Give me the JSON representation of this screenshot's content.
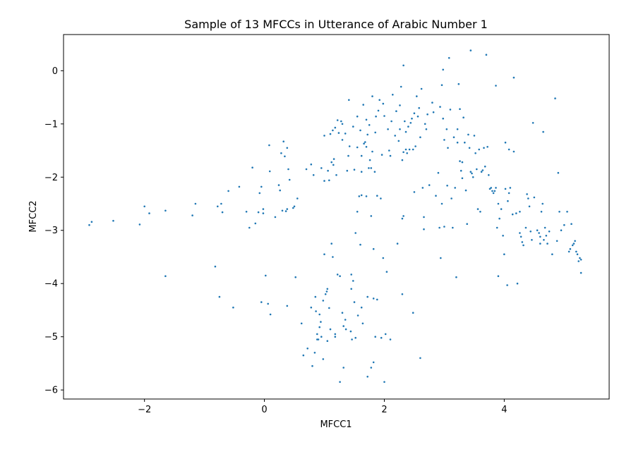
{
  "chart_data": {
    "type": "scatter",
    "title": "Sample of 13 MFCCs in Utterance of Arabic Number 1",
    "xlabel": "MFCC1",
    "ylabel": "MFCC2",
    "xlim": [
      -3.35,
      5.75
    ],
    "ylim": [
      -6.17,
      0.68
    ],
    "xticks": [
      -2,
      0,
      2,
      4
    ],
    "yticks": [
      -6,
      -5,
      -4,
      -3,
      -2,
      -1,
      0
    ],
    "grid": false,
    "marker_color": "#1f77b4",
    "points": [
      [
        -2.92,
        -2.9
      ],
      [
        -2.88,
        -2.84
      ],
      [
        -2.52,
        -2.82
      ],
      [
        -2.08,
        -2.89
      ],
      [
        -2.0,
        -2.55
      ],
      [
        -1.92,
        -2.68
      ],
      [
        -1.65,
        -2.63
      ],
      [
        -1.65,
        -3.86
      ],
      [
        -1.2,
        -2.72
      ],
      [
        -1.15,
        -2.5
      ],
      [
        -0.82,
        -3.68
      ],
      [
        -0.75,
        -4.25
      ],
      [
        -0.78,
        -2.55
      ],
      [
        -0.72,
        -2.5
      ],
      [
        -0.7,
        -2.66
      ],
      [
        -0.6,
        -2.26
      ],
      [
        -0.52,
        -4.45
      ],
      [
        -0.42,
        -2.18
      ],
      [
        -0.3,
        -2.65
      ],
      [
        -0.25,
        -2.95
      ],
      [
        -0.2,
        -1.82
      ],
      [
        -0.15,
        -2.87
      ],
      [
        -0.1,
        -2.66
      ],
      [
        -0.08,
        -2.3
      ],
      [
        -0.05,
        -2.18
      ],
      [
        -0.05,
        -4.35
      ],
      [
        -0.02,
        -2.6
      ],
      [
        -0.02,
        -2.68
      ],
      [
        0.02,
        -3.85
      ],
      [
        0.06,
        -4.38
      ],
      [
        0.08,
        -1.4
      ],
      [
        0.09,
        -1.89
      ],
      [
        0.1,
        -4.58
      ],
      [
        0.18,
        -2.75
      ],
      [
        0.24,
        -2.15
      ],
      [
        0.26,
        -2.25
      ],
      [
        0.28,
        -1.55
      ],
      [
        0.3,
        -2.63
      ],
      [
        0.32,
        -1.33
      ],
      [
        0.34,
        -1.61
      ],
      [
        0.36,
        -2.64
      ],
      [
        0.38,
        -1.45
      ],
      [
        0.38,
        -2.6
      ],
      [
        0.38,
        -4.42
      ],
      [
        0.4,
        -1.85
      ],
      [
        0.42,
        -2.05
      ],
      [
        0.48,
        -2.58
      ],
      [
        0.5,
        -2.55
      ],
      [
        0.52,
        -3.88
      ],
      [
        0.55,
        -2.4
      ],
      [
        0.62,
        -4.75
      ],
      [
        0.65,
        -5.35
      ],
      [
        0.7,
        -1.85
      ],
      [
        0.72,
        -5.22
      ],
      [
        0.78,
        -1.76
      ],
      [
        0.78,
        -4.45
      ],
      [
        0.8,
        -5.55
      ],
      [
        0.82,
        -1.96
      ],
      [
        0.84,
        -5.3
      ],
      [
        0.85,
        -4.25
      ],
      [
        0.86,
        -4.52
      ],
      [
        0.88,
        -4.95
      ],
      [
        0.88,
        -5.05
      ],
      [
        0.9,
        -5.05
      ],
      [
        0.92,
        -4.82
      ],
      [
        0.92,
        -4.58
      ],
      [
        0.94,
        -4.72
      ],
      [
        0.95,
        -5.0
      ],
      [
        0.95,
        -1.83
      ],
      [
        0.98,
        -4.32
      ],
      [
        0.98,
        -5.42
      ],
      [
        1.0,
        -2.07
      ],
      [
        1.0,
        -3.45
      ],
      [
        1.0,
        -1.22
      ],
      [
        1.02,
        -4.2
      ],
      [
        1.04,
        -4.15
      ],
      [
        1.05,
        -5.08
      ],
      [
        1.05,
        -4.1
      ],
      [
        1.06,
        -1.88
      ],
      [
        1.08,
        -4.46
      ],
      [
        1.08,
        -2.06
      ],
      [
        1.1,
        -1.19
      ],
      [
        1.1,
        -4.86
      ],
      [
        1.12,
        -3.25
      ],
      [
        1.12,
        -1.72
      ],
      [
        1.14,
        -1.12
      ],
      [
        1.14,
        -3.5
      ],
      [
        1.15,
        -1.77
      ],
      [
        1.16,
        -1.66
      ],
      [
        1.18,
        -4.95
      ],
      [
        1.18,
        -5.0
      ],
      [
        1.18,
        -1.07
      ],
      [
        1.2,
        -1.96
      ],
      [
        1.22,
        -0.93
      ],
      [
        1.22,
        -3.83
      ],
      [
        1.24,
        -1.17
      ],
      [
        1.26,
        -3.86
      ],
      [
        1.26,
        -5.85
      ],
      [
        1.28,
        -0.95
      ],
      [
        1.3,
        -1.0
      ],
      [
        1.3,
        -1.3
      ],
      [
        1.3,
        -4.55
      ],
      [
        1.32,
        -5.58
      ],
      [
        1.32,
        -4.8
      ],
      [
        1.35,
        -1.18
      ],
      [
        1.35,
        -4.68
      ],
      [
        1.36,
        -4.86
      ],
      [
        1.38,
        -1.88
      ],
      [
        1.4,
        -1.6
      ],
      [
        1.41,
        -0.55
      ],
      [
        1.42,
        -1.42
      ],
      [
        1.44,
        -4.9
      ],
      [
        1.45,
        -3.83
      ],
      [
        1.45,
        -4.1
      ],
      [
        1.46,
        -5.05
      ],
      [
        1.48,
        -1.05
      ],
      [
        1.48,
        -3.95
      ],
      [
        1.5,
        -4.35
      ],
      [
        1.5,
        -1.86
      ],
      [
        1.52,
        -5.02
      ],
      [
        1.52,
        -3.05
      ],
      [
        1.55,
        -2.65
      ],
      [
        1.55,
        -1.44
      ],
      [
        1.55,
        -0.86
      ],
      [
        1.56,
        -4.6
      ],
      [
        1.58,
        -2.36
      ],
      [
        1.6,
        -3.27
      ],
      [
        1.6,
        -1.12
      ],
      [
        1.62,
        -4.45
      ],
      [
        1.62,
        -2.34
      ],
      [
        1.62,
        -1.6
      ],
      [
        1.62,
        -1.9
      ],
      [
        1.64,
        -4.75
      ],
      [
        1.65,
        -0.64
      ],
      [
        1.66,
        -1.37
      ],
      [
        1.68,
        -1.34
      ],
      [
        1.7,
        -1.43
      ],
      [
        1.7,
        -2.36
      ],
      [
        1.7,
        -0.92
      ],
      [
        1.72,
        -5.75
      ],
      [
        1.72,
        -1.2
      ],
      [
        1.72,
        -4.25
      ],
      [
        1.74,
        -1.83
      ],
      [
        1.75,
        -1.02
      ],
      [
        1.76,
        -1.68
      ],
      [
        1.78,
        -1.83
      ],
      [
        1.78,
        -2.73
      ],
      [
        1.78,
        -5.58
      ],
      [
        1.8,
        -0.48
      ],
      [
        1.8,
        -1.52
      ],
      [
        1.82,
        -5.48
      ],
      [
        1.82,
        -3.35
      ],
      [
        1.82,
        -4.28
      ],
      [
        1.84,
        -1.9
      ],
      [
        1.85,
        -5.0
      ],
      [
        1.85,
        -1.16
      ],
      [
        1.86,
        -0.86
      ],
      [
        1.88,
        -2.35
      ],
      [
        1.88,
        -4.3
      ],
      [
        1.9,
        -0.75
      ],
      [
        1.92,
        -0.55
      ],
      [
        1.94,
        -2.4
      ],
      [
        1.95,
        -5.02
      ],
      [
        1.96,
        -1.58
      ],
      [
        1.98,
        -3.52
      ],
      [
        1.98,
        -0.62
      ],
      [
        2.0,
        -5.85
      ],
      [
        2.0,
        -0.85
      ],
      [
        2.02,
        -4.95
      ],
      [
        2.04,
        -3.78
      ],
      [
        2.06,
        -1.1
      ],
      [
        2.08,
        -1.5
      ],
      [
        2.1,
        -1.6
      ],
      [
        2.1,
        -5.05
      ],
      [
        2.12,
        -0.95
      ],
      [
        2.14,
        -0.45
      ],
      [
        2.18,
        -1.22
      ],
      [
        2.2,
        -0.76
      ],
      [
        2.22,
        -3.25
      ],
      [
        2.24,
        -1.32
      ],
      [
        2.26,
        -1.1
      ],
      [
        2.26,
        -0.65
      ],
      [
        2.28,
        -0.3
      ],
      [
        2.3,
        -4.2
      ],
      [
        2.3,
        -1.68
      ],
      [
        2.3,
        -2.78
      ],
      [
        2.32,
        -2.73
      ],
      [
        2.32,
        -1.53
      ],
      [
        2.32,
        0.1
      ],
      [
        2.34,
        -0.95
      ],
      [
        2.36,
        -1.15
      ],
      [
        2.36,
        -1.48
      ],
      [
        2.38,
        -1.55
      ],
      [
        2.4,
        -1.05
      ],
      [
        2.42,
        -1.48
      ],
      [
        2.44,
        -0.98
      ],
      [
        2.46,
        -0.9
      ],
      [
        2.48,
        -4.55
      ],
      [
        2.48,
        -1.48
      ],
      [
        2.5,
        -0.8
      ],
      [
        2.5,
        -2.28
      ],
      [
        2.52,
        -1.42
      ],
      [
        2.54,
        -0.48
      ],
      [
        2.56,
        -0.86
      ],
      [
        2.58,
        -0.7
      ],
      [
        2.6,
        -5.4
      ],
      [
        2.6,
        -1.25
      ],
      [
        2.62,
        -0.34
      ],
      [
        2.64,
        -2.2
      ],
      [
        2.66,
        -2.75
      ],
      [
        2.66,
        -2.98
      ],
      [
        2.68,
        -1.0
      ],
      [
        2.7,
        -1.1
      ],
      [
        2.72,
        -0.82
      ],
      [
        2.75,
        -2.15
      ],
      [
        2.8,
        -0.6
      ],
      [
        2.82,
        -0.78
      ],
      [
        2.86,
        -2.35
      ],
      [
        2.9,
        -1.92
      ],
      [
        2.92,
        -2.95
      ],
      [
        2.93,
        -0.68
      ],
      [
        2.94,
        -3.52
      ],
      [
        2.96,
        -2.5
      ],
      [
        2.96,
        -0.27
      ],
      [
        2.98,
        0.02
      ],
      [
        2.98,
        -0.9
      ],
      [
        3.0,
        -2.93
      ],
      [
        3.0,
        -1.3
      ],
      [
        3.04,
        -1.1
      ],
      [
        3.05,
        -2.16
      ],
      [
        3.06,
        -1.45
      ],
      [
        3.08,
        0.24
      ],
      [
        3.1,
        -0.73
      ],
      [
        3.12,
        -2.4
      ],
      [
        3.14,
        -2.95
      ],
      [
        3.16,
        -1.25
      ],
      [
        3.18,
        -2.2
      ],
      [
        3.2,
        -3.88
      ],
      [
        3.22,
        -1.35
      ],
      [
        3.22,
        -1.1
      ],
      [
        3.24,
        -0.25
      ],
      [
        3.26,
        -0.72
      ],
      [
        3.26,
        -1.7
      ],
      [
        3.28,
        -1.88
      ],
      [
        3.3,
        -2.02
      ],
      [
        3.3,
        -1.72
      ],
      [
        3.32,
        -0.88
      ],
      [
        3.34,
        -1.35
      ],
      [
        3.36,
        -2.25
      ],
      [
        3.38,
        -2.88
      ],
      [
        3.4,
        -1.2
      ],
      [
        3.42,
        -1.45
      ],
      [
        3.44,
        -1.9
      ],
      [
        3.44,
        0.38
      ],
      [
        3.46,
        -1.93
      ],
      [
        3.48,
        -2.0
      ],
      [
        3.5,
        -1.22
      ],
      [
        3.52,
        -1.55
      ],
      [
        3.54,
        -1.85
      ],
      [
        3.56,
        -2.6
      ],
      [
        3.58,
        -1.48
      ],
      [
        3.6,
        -2.65
      ],
      [
        3.62,
        -1.9
      ],
      [
        3.64,
        -1.87
      ],
      [
        3.66,
        -1.45
      ],
      [
        3.68,
        -1.8
      ],
      [
        3.7,
        0.3
      ],
      [
        3.72,
        -1.43
      ],
      [
        3.74,
        -1.96
      ],
      [
        3.76,
        -2.22
      ],
      [
        3.78,
        -2.2
      ],
      [
        3.8,
        -2.26
      ],
      [
        3.82,
        -2.3
      ],
      [
        3.84,
        -2.26
      ],
      [
        3.86,
        -0.28
      ],
      [
        3.86,
        -2.2
      ],
      [
        3.88,
        -2.95
      ],
      [
        3.9,
        -3.86
      ],
      [
        3.9,
        -2.5
      ],
      [
        3.92,
        -2.78
      ],
      [
        3.95,
        -2.6
      ],
      [
        3.98,
        -3.1
      ],
      [
        4.0,
        -3.45
      ],
      [
        4.02,
        -2.22
      ],
      [
        4.02,
        -1.35
      ],
      [
        4.05,
        -4.03
      ],
      [
        4.06,
        -2.45
      ],
      [
        4.08,
        -2.3
      ],
      [
        4.08,
        -1.48
      ],
      [
        4.1,
        -2.2
      ],
      [
        4.14,
        -2.7
      ],
      [
        4.16,
        -1.52
      ],
      [
        4.16,
        -0.13
      ],
      [
        4.2,
        -2.68
      ],
      [
        4.22,
        -4.0
      ],
      [
        4.26,
        -2.65
      ],
      [
        4.26,
        -3.05
      ],
      [
        4.28,
        -3.12
      ],
      [
        4.3,
        -3.22
      ],
      [
        4.32,
        -3.28
      ],
      [
        4.36,
        -2.95
      ],
      [
        4.38,
        -2.32
      ],
      [
        4.4,
        -2.4
      ],
      [
        4.42,
        -2.55
      ],
      [
        4.44,
        -3.02
      ],
      [
        4.46,
        -3.18
      ],
      [
        4.48,
        -0.98
      ],
      [
        4.5,
        -2.38
      ],
      [
        4.55,
        -3.0
      ],
      [
        4.58,
        -3.05
      ],
      [
        4.6,
        -3.25
      ],
      [
        4.6,
        -3.12
      ],
      [
        4.62,
        -2.65
      ],
      [
        4.64,
        -2.5
      ],
      [
        4.65,
        -1.15
      ],
      [
        4.66,
        -3.18
      ],
      [
        4.68,
        -2.95
      ],
      [
        4.7,
        -3.1
      ],
      [
        4.72,
        -3.25
      ],
      [
        4.75,
        -3.02
      ],
      [
        4.8,
        -3.45
      ],
      [
        4.85,
        -0.52
      ],
      [
        4.88,
        -3.2
      ],
      [
        4.9,
        -1.92
      ],
      [
        4.92,
        -2.65
      ],
      [
        4.95,
        -3.0
      ],
      [
        5.0,
        -2.9
      ],
      [
        5.05,
        -2.65
      ],
      [
        5.08,
        -3.4
      ],
      [
        5.1,
        -3.35
      ],
      [
        5.12,
        -2.88
      ],
      [
        5.14,
        -3.28
      ],
      [
        5.16,
        -3.25
      ],
      [
        5.18,
        -3.2
      ],
      [
        5.2,
        -3.4
      ],
      [
        5.22,
        -3.45
      ],
      [
        5.24,
        -3.58
      ],
      [
        5.26,
        -3.52
      ],
      [
        5.28,
        -3.55
      ],
      [
        5.28,
        -3.8
      ]
    ]
  }
}
